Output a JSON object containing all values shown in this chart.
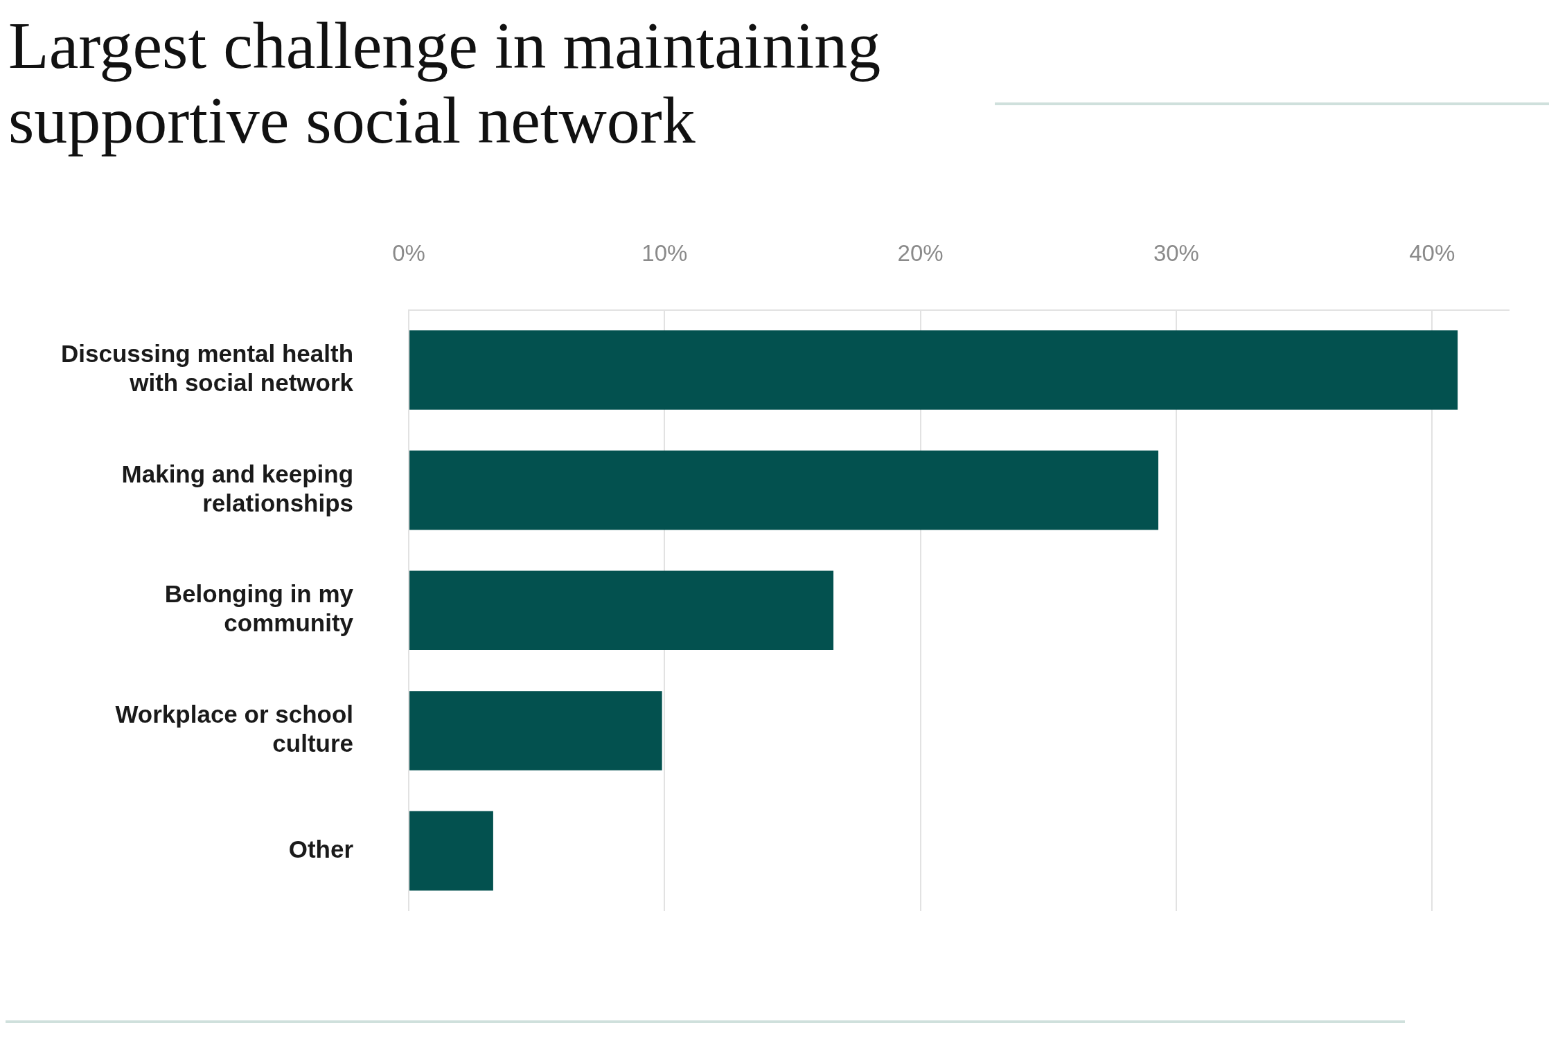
{
  "chart_data": {
    "type": "bar",
    "orientation": "horizontal",
    "title": "Largest challenge in maintaining supportive social network",
    "categories": [
      "Discussing mental health with social network",
      "Making and keeping relationships",
      "Belonging in my community",
      "Workplace or school culture",
      "Other"
    ],
    "values": [
      41.0,
      29.3,
      16.6,
      9.9,
      3.3
    ],
    "color": "#03514f",
    "xlim": [
      0,
      43
    ],
    "xticks": [
      {
        "value": 0,
        "label": "0%"
      },
      {
        "value": 10,
        "label": "10%"
      },
      {
        "value": 20,
        "label": "20%"
      },
      {
        "value": 30,
        "label": "30%"
      },
      {
        "value": 40,
        "label": "40%"
      }
    ],
    "grid": "x",
    "legend": false
  }
}
